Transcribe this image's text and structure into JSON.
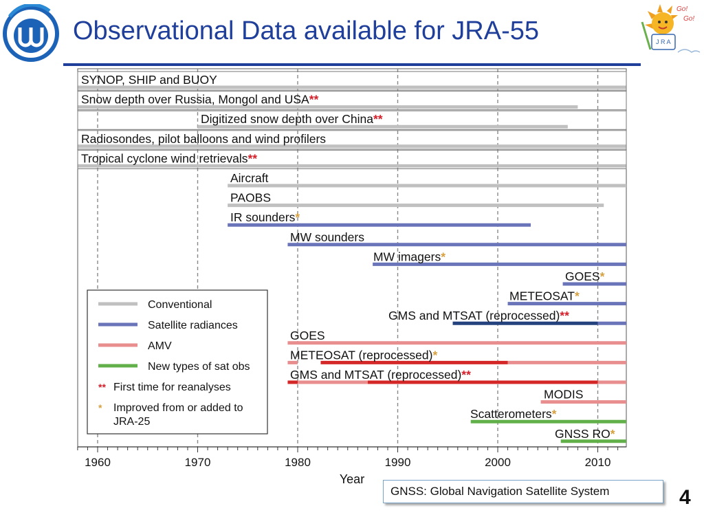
{
  "slide": {
    "title": "Observational Data available for JRA-55",
    "note": "GNSS: Global Navigation Satellite System",
    "page_number": "4",
    "mascot_text": {
      "line1": "Go!",
      "line2": "Go!",
      "sign": "J R A"
    }
  },
  "chart_data": {
    "type": "bar",
    "subtype": "timeline",
    "xlabel": "Year",
    "xlim": [
      1960,
      2013
    ],
    "x_ticks": [
      1960,
      1970,
      1980,
      1990,
      2000,
      2010
    ],
    "grid": true,
    "legend_position": "lower-left",
    "colors": {
      "Conventional": "#c0c0c0",
      "Satellite radiances": "#6a74b8",
      "Satellite radiances (reprocessed)": "#24437e",
      "AMV": "#e88e8e",
      "AMV (reprocessed)": "#d42828",
      "New types of sat obs": "#62b04a",
      "double_star": "#d4202a",
      "single_star": "#d6a040"
    },
    "legend": [
      {
        "label": "Conventional",
        "kind": "line",
        "color_key": "Conventional"
      },
      {
        "label": "Satellite radiances",
        "kind": "line",
        "color_key": "Satellite radiances"
      },
      {
        "label": "AMV",
        "kind": "line",
        "color_key": "AMV"
      },
      {
        "label": "New types of sat obs",
        "kind": "line",
        "color_key": "New types of sat obs"
      },
      {
        "label": "First time for reanalyses",
        "kind": "marker",
        "marker": "**",
        "color_key": "double_star"
      },
      {
        "label": "Improved from or added to JRA-25",
        "kind": "marker",
        "marker": "*",
        "color_key": "single_star"
      }
    ],
    "rows": [
      {
        "label": "SYNOP, SHIP and BUOY",
        "marker": "",
        "category": "Conventional",
        "segments": [
          [
            1958,
            2013
          ]
        ]
      },
      {
        "label": "Snow depth over Russia, Mongol and USA",
        "marker": "**",
        "category": "Conventional",
        "segments": [
          [
            1958,
            2008
          ]
        ]
      },
      {
        "label": "Digitized snow depth over China",
        "marker": "**",
        "category": "Conventional",
        "segments": [
          [
            1970,
            2007
          ]
        ]
      },
      {
        "label": "Radiosondes, pilot balloons and wind profilers",
        "marker": "",
        "category": "Conventional",
        "segments": [
          [
            1958,
            2013
          ]
        ]
      },
      {
        "label": "Tropical cyclone wind retrievals",
        "marker": "**",
        "category": "Conventional",
        "segments": [
          [
            1958,
            2013
          ]
        ]
      },
      {
        "label": "Aircraft",
        "marker": "",
        "category": "Conventional",
        "segments": [
          [
            1973,
            2013
          ]
        ]
      },
      {
        "label": "PAOBS",
        "marker": "",
        "category": "Conventional",
        "segments": [
          [
            1973,
            2010.6
          ]
        ]
      },
      {
        "label": "IR sounders",
        "marker": "*",
        "category": "Satellite radiances",
        "segments": [
          [
            1973,
            2003.3
          ]
        ]
      },
      {
        "label": "MW sounders",
        "marker": "",
        "category": "Satellite radiances",
        "segments": [
          [
            1979,
            2013
          ]
        ]
      },
      {
        "label": "MW imagers",
        "marker": "*",
        "category": "Satellite radiances",
        "segments": [
          [
            1987.5,
            2013
          ]
        ]
      },
      {
        "label": "GOES",
        "marker": "*",
        "category": "Satellite radiances",
        "segments": [
          [
            2006.5,
            2013
          ]
        ]
      },
      {
        "label": "METEOSAT",
        "marker": "*",
        "category": "Satellite radiances",
        "segments": [
          [
            2001,
            2013
          ]
        ]
      },
      {
        "label": "GMS and MTSAT (reprocessed)",
        "marker": "**",
        "category": "Satellite radiances",
        "segments": [
          [
            1995.5,
            2010,
            "Satellite radiances (reprocessed)"
          ],
          [
            2010,
            2013,
            "Satellite radiances"
          ]
        ]
      },
      {
        "label": "GOES",
        "marker": "",
        "category": "AMV",
        "segments": [
          [
            1979,
            2013
          ]
        ]
      },
      {
        "label": "METEOSAT (reprocessed)",
        "marker": "*",
        "category": "AMV",
        "segments": [
          [
            1979,
            1980
          ],
          [
            1982.3,
            2001,
            "AMV (reprocessed)"
          ],
          [
            2001,
            2013
          ]
        ]
      },
      {
        "label": "GMS and MTSAT (reprocessed)",
        "marker": "**",
        "category": "AMV",
        "segments": [
          [
            1979,
            1980,
            "AMV (reprocessed)"
          ],
          [
            1980,
            1987,
            "AMV"
          ],
          [
            1987,
            2010,
            "AMV (reprocessed)"
          ],
          [
            2010,
            2013,
            "AMV"
          ]
        ]
      },
      {
        "label": "MODIS",
        "marker": "",
        "category": "AMV",
        "segments": [
          [
            2004.3,
            2013
          ]
        ]
      },
      {
        "label": "Scatterometers",
        "marker": "*",
        "category": "New types of sat obs",
        "segments": [
          [
            1997.3,
            2013
          ]
        ]
      },
      {
        "label": "GNSS RO",
        "marker": "*",
        "category": "New types of sat obs",
        "segments": [
          [
            2006.3,
            2013
          ]
        ]
      }
    ]
  }
}
